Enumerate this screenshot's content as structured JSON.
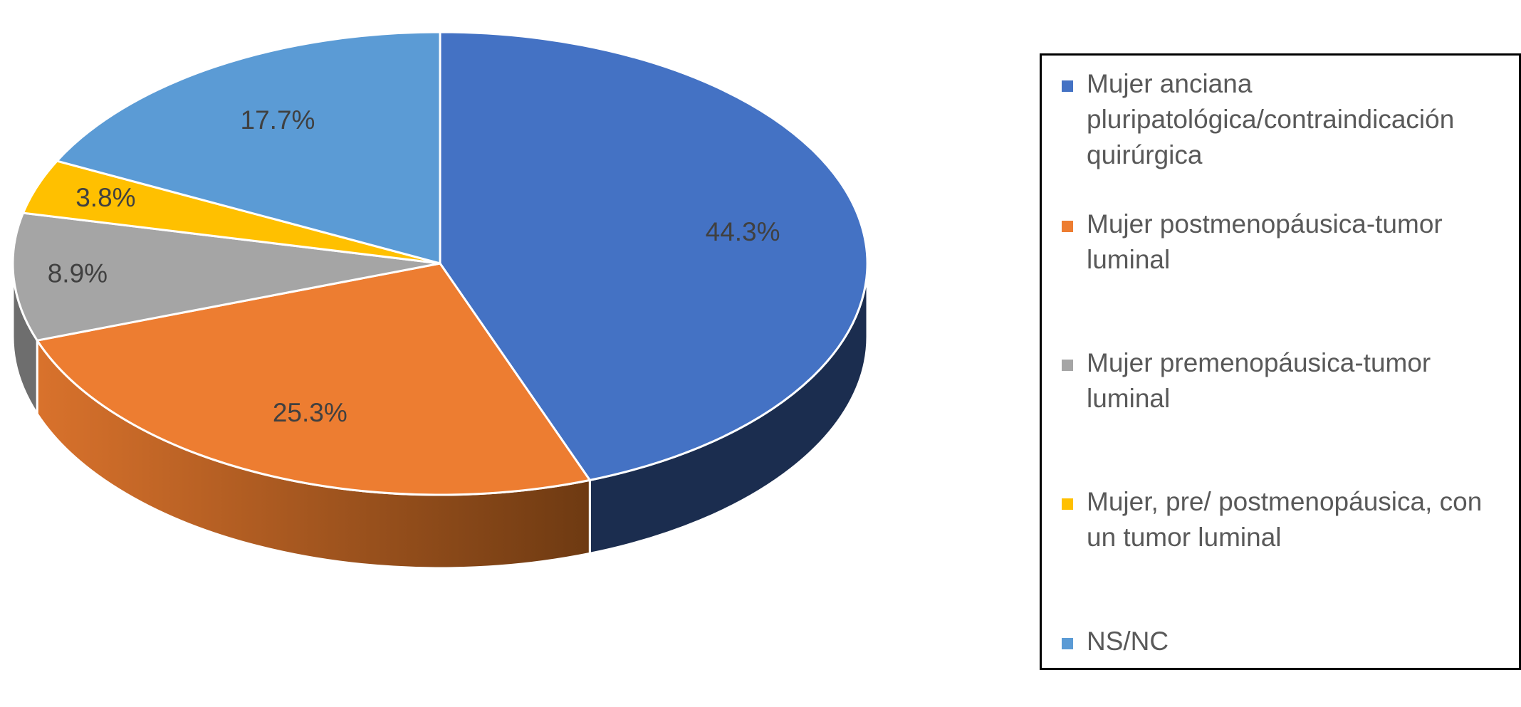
{
  "chart_data": {
    "type": "pie",
    "style": "3d",
    "title": "",
    "slices": [
      {
        "label": "Mujer anciana pluripatológica/contraindicación quirúrgica",
        "value": 44.3,
        "display": "44.3%",
        "color": "#4472C4",
        "side_color": "#1B2D4F"
      },
      {
        "label": "Mujer postmenopáusica-tumor luminal",
        "value": 25.3,
        "display": "25.3%",
        "color": "#ED7D31",
        "side_color": "#B45A22"
      },
      {
        "label": "Mujer premenopáusica-tumor luminal",
        "value": 8.9,
        "display": "8.9%",
        "color": "#A5A5A5",
        "side_color": "#6E6E6E"
      },
      {
        "label": "Mujer, pre/ postmenopáusica, con un tumor luminal",
        "value": 3.8,
        "display": "3.8%",
        "color": "#FFC000",
        "side_color": "#B38600"
      },
      {
        "label": "NS/NC",
        "value": 17.7,
        "display": "17.7%",
        "color": "#5B9BD5",
        "side_color": "#3A6D9C"
      }
    ],
    "legend_position": "right"
  }
}
